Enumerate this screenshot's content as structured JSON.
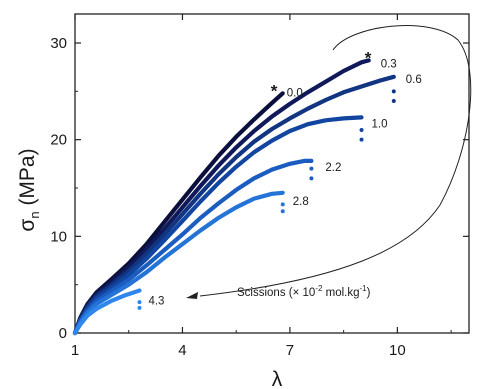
{
  "chart_data": {
    "type": "line",
    "xlabel": "λ",
    "ylabel": {
      "main": "σ",
      "sub": "n",
      "unit": " (MPa)"
    },
    "xlim": [
      1,
      12
    ],
    "ylim": [
      0,
      33
    ],
    "xticks": [
      1,
      4,
      7,
      10
    ],
    "yticks": [
      0,
      10,
      20,
      30
    ],
    "grid": false,
    "legend": "none",
    "series": [
      {
        "name": "0.0",
        "color": "#0a0f3c",
        "star": true,
        "points": [
          [
            1,
            0
          ],
          [
            1.15,
            1.6
          ],
          [
            1.35,
            3
          ],
          [
            1.6,
            4.2
          ],
          [
            2,
            5.5
          ],
          [
            2.5,
            7.2
          ],
          [
            3,
            9.2
          ],
          [
            3.5,
            11.5
          ],
          [
            4,
            13.8
          ],
          [
            4.5,
            16.1
          ],
          [
            5,
            18.3
          ],
          [
            5.5,
            20.3
          ],
          [
            6,
            22.1
          ],
          [
            6.5,
            23.8
          ],
          [
            6.8,
            24.8
          ]
        ],
        "drops": []
      },
      {
        "name": "0.3",
        "color": "#101a5a",
        "star": true,
        "points": [
          [
            1,
            0
          ],
          [
            1.15,
            1.5
          ],
          [
            1.35,
            2.9
          ],
          [
            1.6,
            4
          ],
          [
            2,
            5.2
          ],
          [
            2.5,
            6.8
          ],
          [
            3,
            8.7
          ],
          [
            3.5,
            10.8
          ],
          [
            4,
            13
          ],
          [
            4.5,
            15.2
          ],
          [
            5,
            17.3
          ],
          [
            5.5,
            19.2
          ],
          [
            6,
            20.9
          ],
          [
            6.5,
            22.4
          ],
          [
            7,
            23.7
          ],
          [
            7.5,
            24.9
          ],
          [
            8,
            26
          ],
          [
            8.5,
            27.1
          ],
          [
            9,
            28
          ],
          [
            9.2,
            28.2
          ]
        ],
        "drops": []
      },
      {
        "name": "0.6",
        "color": "#123582",
        "star": false,
        "points": [
          [
            1,
            0
          ],
          [
            1.15,
            1.4
          ],
          [
            1.35,
            2.7
          ],
          [
            1.6,
            3.8
          ],
          [
            2,
            4.9
          ],
          [
            2.5,
            6.4
          ],
          [
            3,
            8.2
          ],
          [
            3.5,
            10.2
          ],
          [
            4,
            12.3
          ],
          [
            4.5,
            14.4
          ],
          [
            5,
            16.4
          ],
          [
            5.5,
            18.2
          ],
          [
            6,
            19.8
          ],
          [
            6.5,
            21.1
          ],
          [
            7,
            22.2
          ],
          [
            7.5,
            23.2
          ],
          [
            8,
            24.1
          ],
          [
            8.5,
            24.9
          ],
          [
            9,
            25.5
          ],
          [
            9.5,
            26.1
          ],
          [
            9.9,
            26.5
          ]
        ],
        "drops": [
          25,
          24
        ]
      },
      {
        "name": "1.0",
        "color": "#1245a0",
        "star": false,
        "points": [
          [
            1,
            0
          ],
          [
            1.15,
            1.3
          ],
          [
            1.35,
            2.5
          ],
          [
            1.6,
            3.6
          ],
          [
            2,
            4.6
          ],
          [
            2.5,
            6
          ],
          [
            3,
            7.7
          ],
          [
            3.5,
            9.6
          ],
          [
            4,
            11.6
          ],
          [
            4.5,
            13.6
          ],
          [
            5,
            15.5
          ],
          [
            5.5,
            17.2
          ],
          [
            6,
            18.7
          ],
          [
            6.5,
            19.9
          ],
          [
            7,
            20.9
          ],
          [
            7.5,
            21.6
          ],
          [
            8,
            22
          ],
          [
            8.5,
            22.2
          ],
          [
            9,
            22.3
          ]
        ],
        "drops": [
          21,
          20
        ]
      },
      {
        "name": "2.2",
        "color": "#1a5cc0",
        "star": false,
        "points": [
          [
            1,
            0
          ],
          [
            1.15,
            1.2
          ],
          [
            1.35,
            2.3
          ],
          [
            1.6,
            3.3
          ],
          [
            2,
            4.3
          ],
          [
            2.5,
            5.5
          ],
          [
            3,
            7
          ],
          [
            3.5,
            8.6
          ],
          [
            4,
            10.2
          ],
          [
            4.5,
            11.9
          ],
          [
            5,
            13.4
          ],
          [
            5.5,
            14.8
          ],
          [
            6,
            16
          ],
          [
            6.5,
            16.9
          ],
          [
            7,
            17.5
          ],
          [
            7.4,
            17.8
          ],
          [
            7.6,
            17.8
          ]
        ],
        "drops": [
          17,
          16
        ]
      },
      {
        "name": "2.8",
        "color": "#2474d8",
        "star": false,
        "points": [
          [
            1,
            0
          ],
          [
            1.15,
            1.1
          ],
          [
            1.35,
            2.1
          ],
          [
            1.6,
            3
          ],
          [
            2,
            3.9
          ],
          [
            2.5,
            5
          ],
          [
            3,
            6.3
          ],
          [
            3.5,
            7.8
          ],
          [
            4,
            9.2
          ],
          [
            4.5,
            10.6
          ],
          [
            5,
            11.9
          ],
          [
            5.5,
            13
          ],
          [
            6,
            13.9
          ],
          [
            6.5,
            14.4
          ],
          [
            6.8,
            14.5
          ]
        ],
        "drops": [
          13.3,
          12.6
        ]
      },
      {
        "name": "4.3",
        "color": "#2f86ec",
        "star": false,
        "points": [
          [
            1,
            0
          ],
          [
            1.15,
            0.9
          ],
          [
            1.35,
            1.8
          ],
          [
            1.6,
            2.5
          ],
          [
            2,
            3.3
          ],
          [
            2.4,
            3.9
          ],
          [
            2.8,
            4.4
          ]
        ],
        "drops": [
          3.2,
          2.6
        ]
      }
    ],
    "annotation": {
      "text_prefix": "Scissions (× 10",
      "text_exponent": "-2",
      "text_mid": " mol.kg",
      "text_exponent2": "-1",
      "text_suffix": ")"
    }
  }
}
